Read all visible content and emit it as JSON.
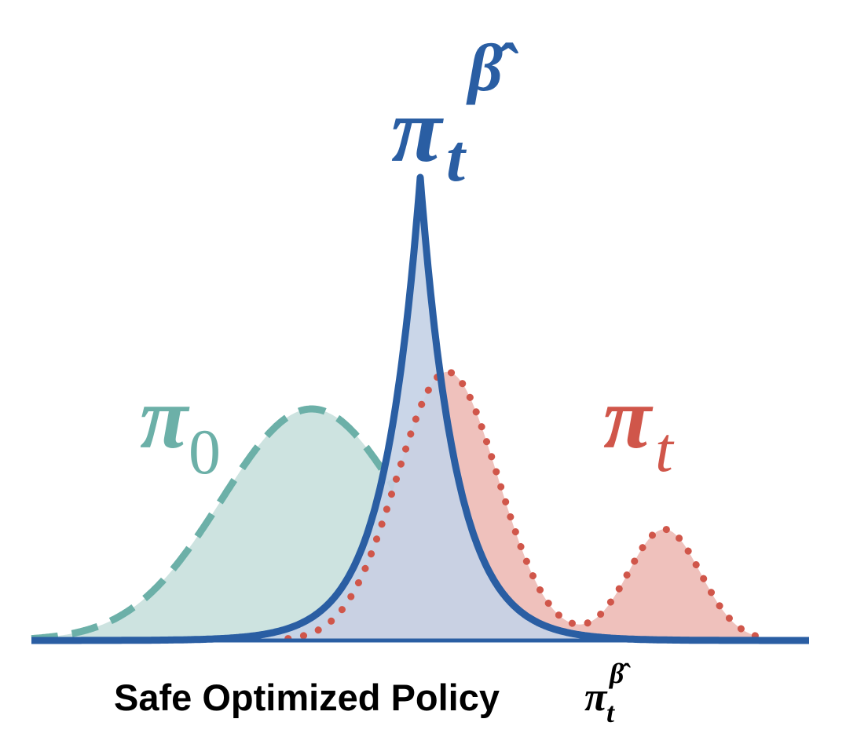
{
  "colors": {
    "pi0_stroke": "#6cb0a8",
    "pi0_fill": "#cde3e0",
    "pit_stroke": "#d0564a",
    "pit_fill": "#efc1bc",
    "safe_stroke": "#2a5ea3",
    "safe_fill": "#c5d3e6",
    "caption": "#000000"
  },
  "labels": {
    "pi0": {
      "symbol": "π",
      "sub": "0"
    },
    "pit": {
      "symbol": "π",
      "sub": "t"
    },
    "safe": {
      "symbol": "π",
      "sub": "t",
      "sup": "β̂"
    }
  },
  "caption": {
    "text": "Safe Optimized Policy",
    "symbol": "π",
    "sub": "t",
    "sup": "β̂"
  },
  "curves": {
    "pi0": {
      "kind": "gaussian",
      "mean": -0.75,
      "sd": 0.5,
      "peak": 0.5
    },
    "pit": {
      "kind": "mixture",
      "components": [
        {
          "mean": 0.0,
          "sd": 0.28,
          "peak": 0.58
        },
        {
          "mean": 1.2,
          "sd": 0.2,
          "peak": 0.24
        }
      ]
    },
    "safe": {
      "kind": "laplace",
      "mean": -0.15,
      "scale": 0.2,
      "peak": 1.0
    }
  }
}
